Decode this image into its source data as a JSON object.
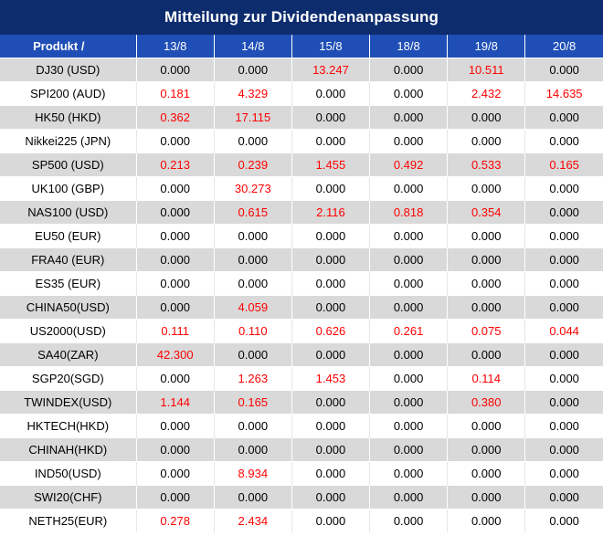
{
  "title": "Mitteilung zur Dividendenanpassung",
  "header": [
    "Produkt /",
    "13/8",
    "14/8",
    "15/8",
    "18/8",
    "19/8",
    "20/8"
  ],
  "rows": [
    {
      "name": "DJ30 (USD)",
      "values": [
        "0.000",
        "0.000",
        "13.247",
        "0.000",
        "10.511",
        "0.000"
      ]
    },
    {
      "name": "SPI200 (AUD)",
      "values": [
        "0.181",
        "4.329",
        "0.000",
        "0.000",
        "2.432",
        "14.635"
      ]
    },
    {
      "name": "HK50 (HKD)",
      "values": [
        "0.362",
        "17.115",
        "0.000",
        "0.000",
        "0.000",
        "0.000"
      ]
    },
    {
      "name": "Nikkei225 (JPN)",
      "values": [
        "0.000",
        "0.000",
        "0.000",
        "0.000",
        "0.000",
        "0.000"
      ]
    },
    {
      "name": "SP500 (USD)",
      "values": [
        "0.213",
        "0.239",
        "1.455",
        "0.492",
        "0.533",
        "0.165"
      ]
    },
    {
      "name": "UK100 (GBP)",
      "values": [
        "0.000",
        "30.273",
        "0.000",
        "0.000",
        "0.000",
        "0.000"
      ]
    },
    {
      "name": "NAS100 (USD)",
      "values": [
        "0.000",
        "0.615",
        "2.116",
        "0.818",
        "0.354",
        "0.000"
      ]
    },
    {
      "name": "EU50 (EUR)",
      "values": [
        "0.000",
        "0.000",
        "0.000",
        "0.000",
        "0.000",
        "0.000"
      ]
    },
    {
      "name": "FRA40 (EUR)",
      "values": [
        "0.000",
        "0.000",
        "0.000",
        "0.000",
        "0.000",
        "0.000"
      ]
    },
    {
      "name": "ES35 (EUR)",
      "values": [
        "0.000",
        "0.000",
        "0.000",
        "0.000",
        "0.000",
        "0.000"
      ]
    },
    {
      "name": "CHINA50(USD)",
      "values": [
        "0.000",
        "4.059",
        "0.000",
        "0.000",
        "0.000",
        "0.000"
      ]
    },
    {
      "name": "US2000(USD)",
      "values": [
        "0.111",
        "0.110",
        "0.626",
        "0.261",
        "0.075",
        "0.044"
      ]
    },
    {
      "name": "SA40(ZAR)",
      "values": [
        "42.300",
        "0.000",
        "0.000",
        "0.000",
        "0.000",
        "0.000"
      ]
    },
    {
      "name": "SGP20(SGD)",
      "values": [
        "0.000",
        "1.263",
        "1.453",
        "0.000",
        "0.114",
        "0.000"
      ]
    },
    {
      "name": "TWINDEX(USD)",
      "values": [
        "1.144",
        "0.165",
        "0.000",
        "0.000",
        "0.380",
        "0.000"
      ]
    },
    {
      "name": "HKTECH(HKD)",
      "values": [
        "0.000",
        "0.000",
        "0.000",
        "0.000",
        "0.000",
        "0.000"
      ]
    },
    {
      "name": "CHINAH(HKD)",
      "values": [
        "0.000",
        "0.000",
        "0.000",
        "0.000",
        "0.000",
        "0.000"
      ]
    },
    {
      "name": "IND50(USD)",
      "values": [
        "0.000",
        "8.934",
        "0.000",
        "0.000",
        "0.000",
        "0.000"
      ]
    },
    {
      "name": "SWI20(CHF)",
      "values": [
        "0.000",
        "0.000",
        "0.000",
        "0.000",
        "0.000",
        "0.000"
      ]
    },
    {
      "name": "NETH25(EUR)",
      "values": [
        "0.278",
        "2.434",
        "0.000",
        "0.000",
        "0.000",
        "0.000"
      ]
    }
  ],
  "colors": {
    "title_bg": "#0d2c6e",
    "header_bg": "#1f4fb6",
    "row_shade": "#d9d9d9",
    "nonzero_value": "#ff0000"
  }
}
